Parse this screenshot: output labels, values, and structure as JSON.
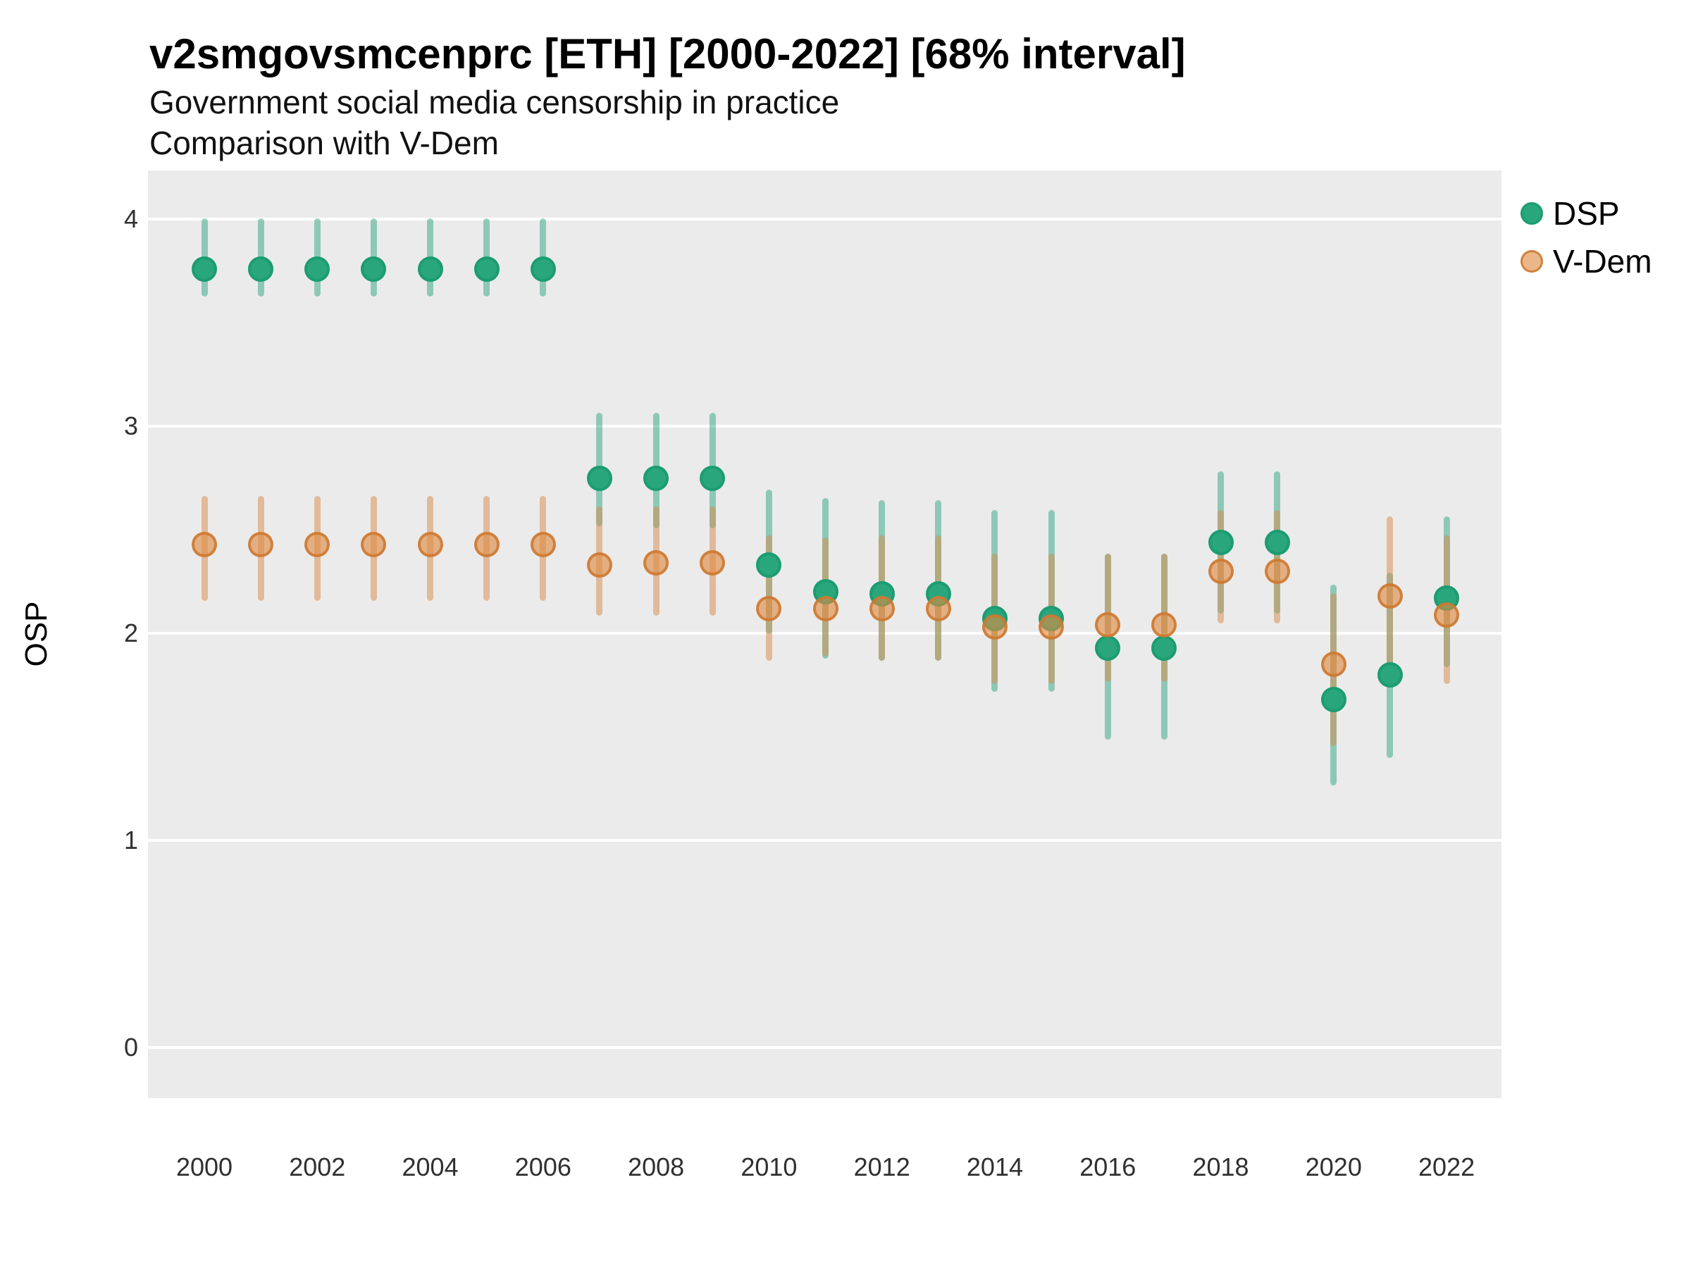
{
  "header": {
    "title": "v2smgovsmcenprc [ETH] [2000-2022] [68% interval]",
    "subtitle1": "Government social media censorship in practice",
    "subtitle2": "Comparison with V-Dem"
  },
  "axes": {
    "y_title": "OSP",
    "y_ticks": [
      4,
      3,
      2,
      1,
      0
    ],
    "x_ticks": [
      2000,
      2002,
      2004,
      2006,
      2008,
      2010,
      2012,
      2014,
      2016,
      2018,
      2020,
      2022
    ]
  },
  "legend": {
    "position": "right",
    "items": [
      {
        "label": "DSP"
      },
      {
        "label": "V-Dem"
      }
    ]
  },
  "colors": {
    "panel_background": "#ebebeb",
    "gridline": "#ffffff",
    "dsp_point_fill": "#2aa67c",
    "dsp_point_stroke": "#1c9c72",
    "dsp_interval": "rgba(27,158,119,0.45)",
    "vdem_point_fill": "rgba(222,138,66,0.62)",
    "vdem_point_stroke": "rgba(205,120,47,0.85)",
    "vdem_interval": "rgba(216,138,74,0.5)"
  },
  "chart_data": {
    "type": "pointrange",
    "title": "v2smgovsmcenprc [ETH] [2000-2022] [68% interval]",
    "subtitle": "Government social media censorship in practice — Comparison with V-Dem",
    "xlabel": "",
    "ylabel": "OSP",
    "interval": "68%",
    "xlim": [
      1999,
      2023
    ],
    "ylim": [
      -0.25,
      4.25
    ],
    "grid": "horizontal-white-on-grey",
    "legend_position": "right",
    "x": [
      2000,
      2001,
      2002,
      2003,
      2004,
      2005,
      2006,
      2007,
      2008,
      2009,
      2010,
      2011,
      2012,
      2013,
      2014,
      2015,
      2016,
      2017,
      2018,
      2019,
      2020,
      2021,
      2022
    ],
    "series": [
      {
        "name": "DSP",
        "color": "#1b9e77",
        "mid": [
          3.76,
          3.76,
          3.76,
          3.76,
          3.76,
          3.76,
          3.76,
          2.75,
          2.75,
          2.75,
          2.33,
          2.2,
          2.19,
          2.19,
          2.07,
          2.07,
          1.93,
          1.93,
          2.44,
          2.44,
          1.68,
          1.8,
          2.17
        ],
        "lo": [
          3.64,
          3.64,
          3.64,
          3.64,
          3.64,
          3.64,
          3.64,
          2.53,
          2.52,
          2.52,
          2.01,
          1.89,
          1.88,
          1.88,
          1.73,
          1.73,
          1.5,
          1.5,
          2.11,
          2.11,
          1.28,
          1.41,
          1.85
        ],
        "hi": [
          3.99,
          3.99,
          3.99,
          3.99,
          3.99,
          3.99,
          3.99,
          3.05,
          3.05,
          3.05,
          2.68,
          2.64,
          2.63,
          2.63,
          2.58,
          2.58,
          2.37,
          2.37,
          2.77,
          2.77,
          2.22,
          2.28,
          2.55
        ]
      },
      {
        "name": "V-Dem",
        "color": "#d98a4a",
        "mid": [
          2.43,
          2.43,
          2.43,
          2.43,
          2.43,
          2.43,
          2.43,
          2.33,
          2.34,
          2.34,
          2.12,
          2.12,
          2.12,
          2.12,
          2.03,
          2.03,
          2.04,
          2.04,
          2.3,
          2.3,
          1.85,
          2.18,
          2.09
        ],
        "lo": [
          2.17,
          2.17,
          2.17,
          2.17,
          2.17,
          2.17,
          2.17,
          2.1,
          2.1,
          2.1,
          1.88,
          1.9,
          1.88,
          1.88,
          1.77,
          1.77,
          1.78,
          1.78,
          2.06,
          2.06,
          1.47,
          1.76,
          1.77
        ],
        "hi": [
          2.65,
          2.65,
          2.65,
          2.65,
          2.65,
          2.65,
          2.65,
          2.6,
          2.6,
          2.6,
          2.46,
          2.45,
          2.46,
          2.46,
          2.37,
          2.37,
          2.37,
          2.37,
          2.58,
          2.58,
          2.18,
          2.55,
          2.46
        ]
      }
    ]
  }
}
